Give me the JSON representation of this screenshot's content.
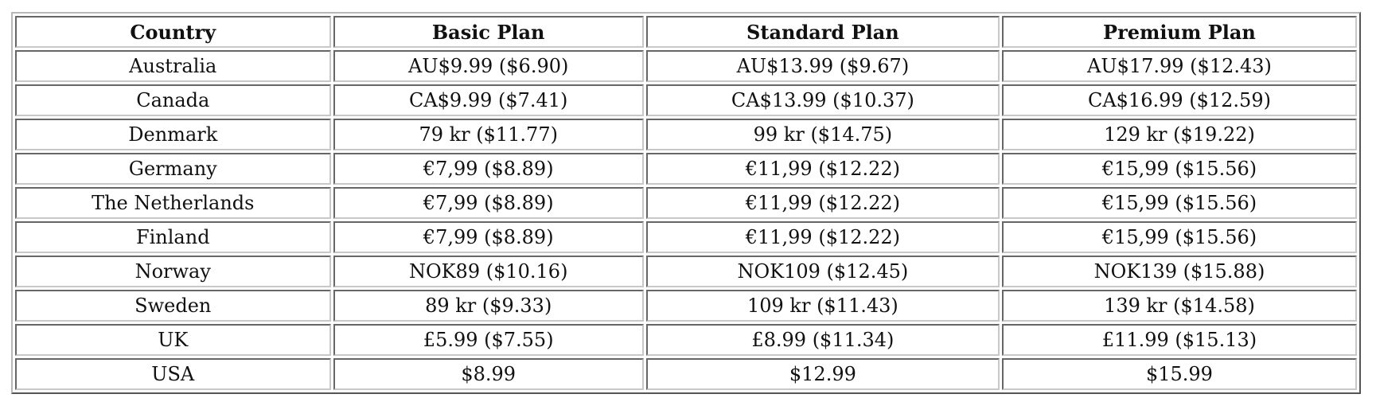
{
  "table": {
    "headers": [
      "Country",
      "Basic Plan",
      "Standard Plan",
      "Premium Plan"
    ],
    "rows": [
      [
        "Australia",
        "AU$9.99 ($6.90)",
        "AU$13.99 ($9.67)",
        "AU$17.99 ($12.43)"
      ],
      [
        "Canada",
        "CA$9.99 ($7.41)",
        "CA$13.99 ($10.37)",
        "CA$16.99 ($12.59)"
      ],
      [
        "Denmark",
        "79 kr ($11.77)",
        "99 kr ($14.75)",
        "129 kr ($19.22)"
      ],
      [
        "Germany",
        "€7,99 ($8.89)",
        "€11,99 ($12.22)",
        "€15,99 ($15.56)"
      ],
      [
        "The Netherlands",
        "€7,99 ($8.89)",
        "€11,99 ($12.22)",
        "€15,99 ($15.56)"
      ],
      [
        "Finland",
        "€7,99 ($8.89)",
        "€11,99 ($12.22)",
        "€15,99 ($15.56)"
      ],
      [
        "Norway",
        "NOK89 ($10.16)",
        "NOK109 ($12.45)",
        "NOK139 ($15.88)"
      ],
      [
        "Sweden",
        "89 kr ($9.33)",
        "109 kr ($11.43)",
        "139 kr ($14.58)"
      ],
      [
        "UK",
        "£5.99 ($7.55)",
        "£8.99 ($11.34)",
        "£11.99 ($15.13)"
      ],
      [
        "USA",
        "$8.99",
        "$12.99",
        "$15.99"
      ]
    ]
  }
}
